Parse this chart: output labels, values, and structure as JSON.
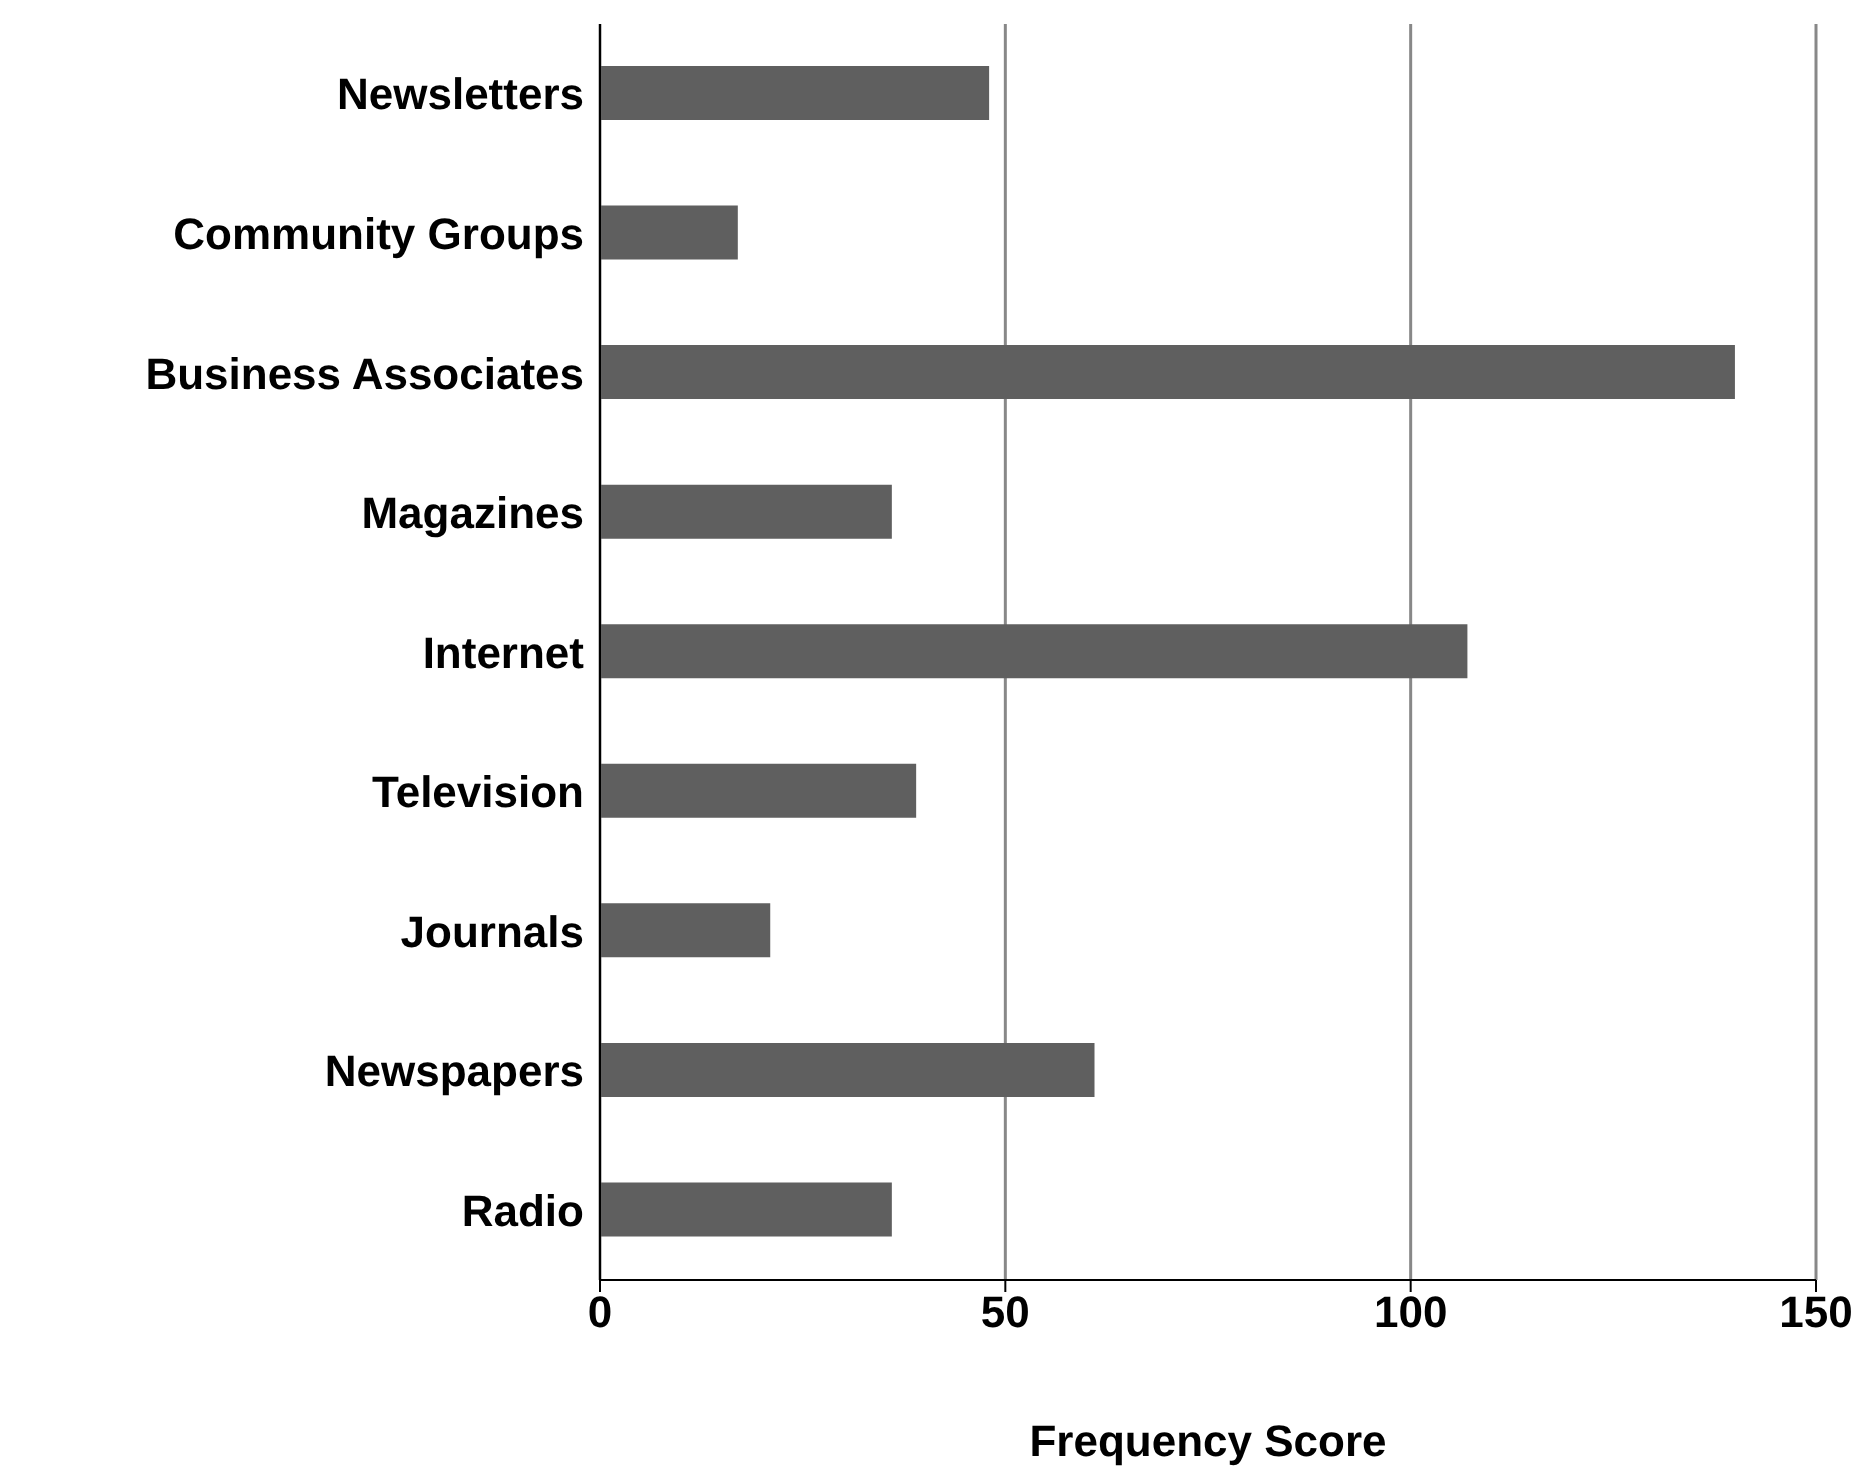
{
  "chart_data": {
    "type": "bar",
    "orientation": "horizontal",
    "xlabel": "Frequency Score",
    "categories": [
      "Newsletters",
      "Community Groups",
      "Business Associates",
      "Magazines",
      "Internet ",
      "Television",
      "Journals",
      "Newspapers",
      "Radio"
    ],
    "values": [
      48,
      17,
      140,
      36,
      107,
      39,
      21,
      61,
      36
    ],
    "color": "#5f5f5f",
    "xlim": [
      0,
      150
    ],
    "xticks": [
      0,
      50,
      100,
      150
    ],
    "grid": "x"
  }
}
